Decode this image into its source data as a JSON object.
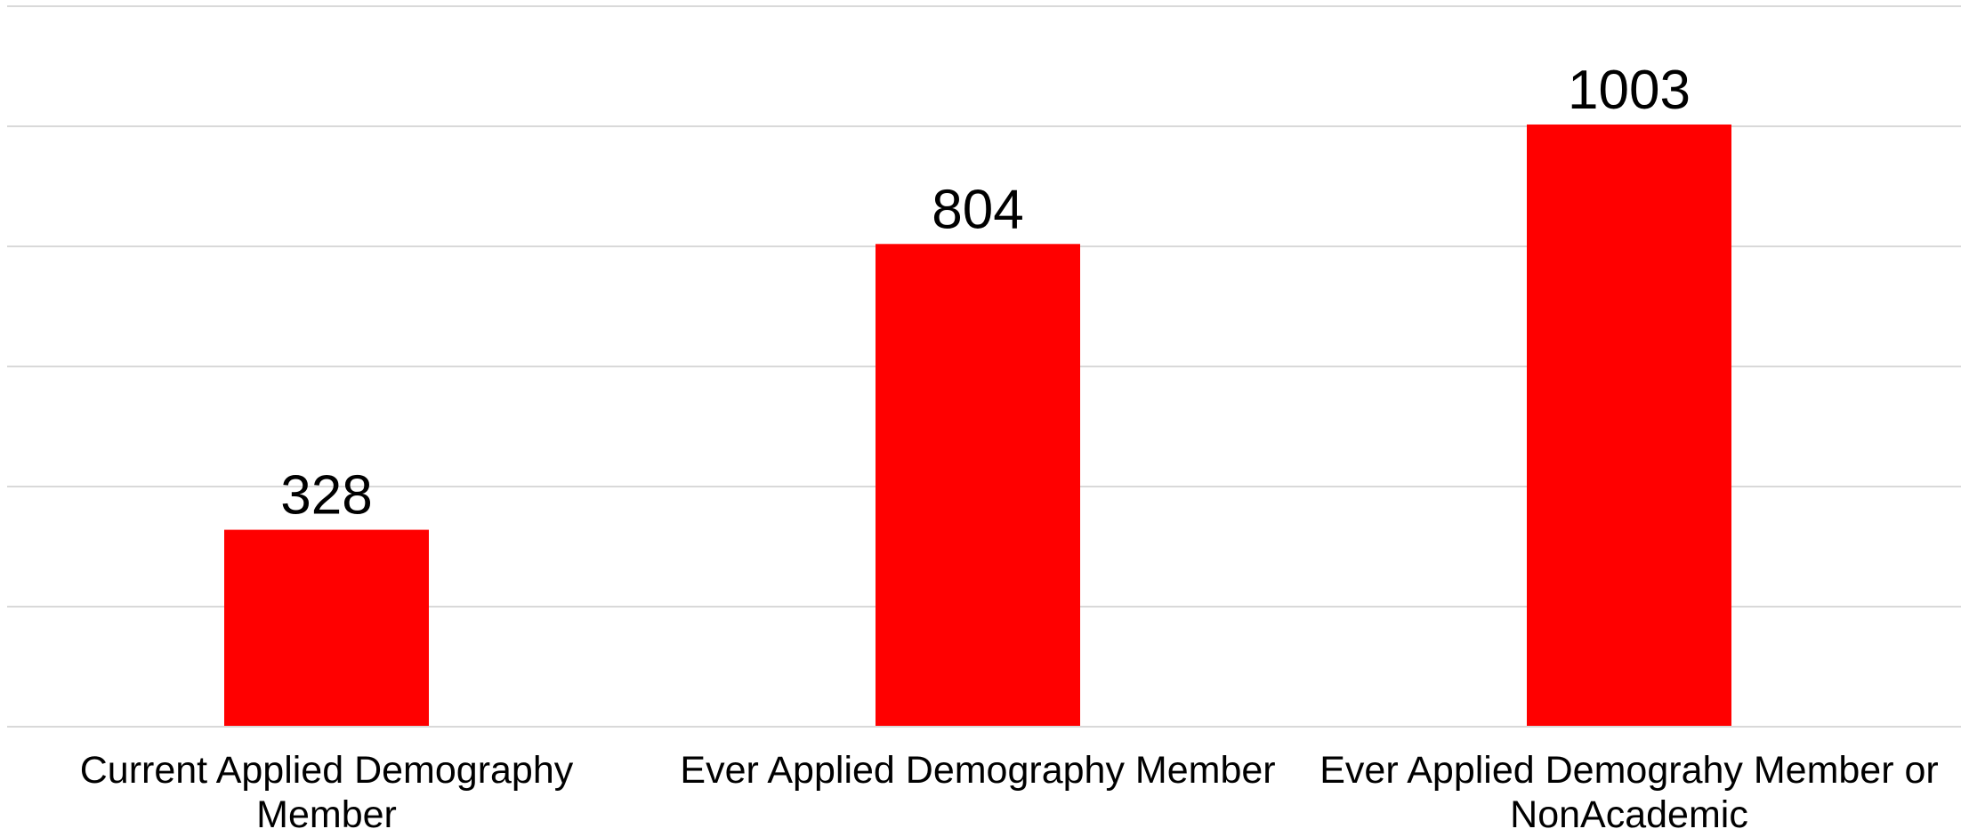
{
  "chart_data": {
    "type": "bar",
    "categories": [
      "Current Applied Demography Member",
      "Ever Applied Demography Member",
      "Ever Applied Demograhy Member or NonAcademic"
    ],
    "values": [
      328,
      804,
      1003
    ],
    "data_labels": [
      "328",
      "804",
      "1003"
    ],
    "title": "",
    "xlabel": "",
    "ylabel": "",
    "ylim": [
      0,
      1200
    ],
    "grid_step": 200,
    "grid": true,
    "y_tick_labels_visible": false,
    "legend": "none",
    "bar_color": "#ff0000"
  }
}
